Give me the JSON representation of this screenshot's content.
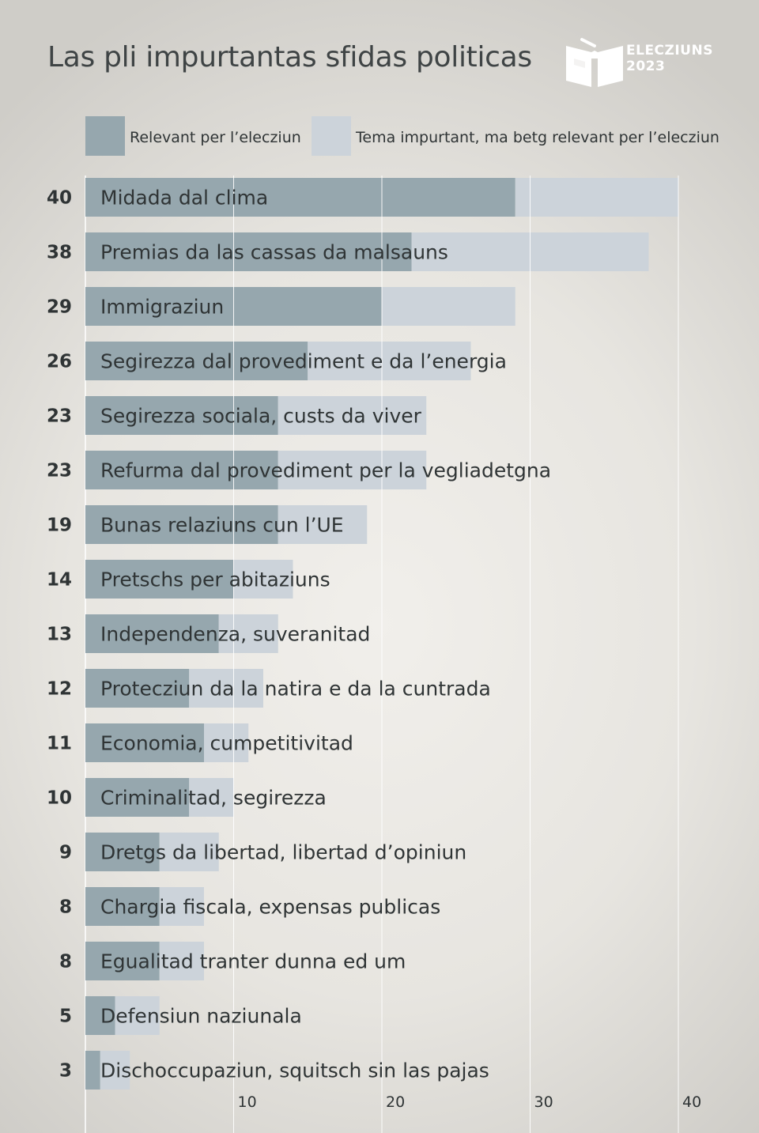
{
  "brand": {
    "line1": "ELECZIUNS",
    "line2": "2023"
  },
  "colors": {
    "relevant": "#96a7ae",
    "important": "#ccd3da"
  },
  "chart_data": {
    "type": "bar",
    "orientation": "horizontal",
    "stacked": true,
    "title": "Las pli impurtantas sfidas politicas",
    "legend": [
      "Relevant per l’elecziun",
      "Tema impurtant, ma betg relevant per l’elecziun"
    ],
    "legend_position": "top",
    "xlim": [
      0,
      40
    ],
    "xticks": [
      10,
      20,
      30,
      40
    ],
    "grid": true,
    "categories": [
      "Midada dal clima",
      "Premias da las cassas da malsauns",
      "Immigraziun",
      "Segirezza dal provediment e da l’energia",
      "Segirezza sociala, custs da viver",
      "Refurma dal provediment per la vegliadetgna",
      "Bunas relaziuns cun l’UE",
      "Pretschs per abitaziuns",
      "Independenza, suveranitad",
      "Protecziun da la natira e da la cuntrada",
      "Economia, cumpetitivitad",
      "Criminalitad, segirezza",
      "Dretgs da libertad, libertad d’opiniun",
      "Chargia fiscala, expensas publicas",
      "Egualitad tranter dunna ed um",
      "Defensiun naziunala",
      "Dischoccupaziun, squitsch sin las pajas"
    ],
    "totals": [
      40,
      38,
      29,
      26,
      23,
      23,
      19,
      14,
      13,
      12,
      11,
      10,
      9,
      8,
      8,
      5,
      3
    ],
    "series": [
      {
        "name": "Relevant per l’elecziun",
        "values": [
          29,
          22,
          20,
          15,
          13,
          13,
          13,
          10,
          9,
          7,
          8,
          7,
          5,
          5,
          5,
          2,
          1
        ]
      },
      {
        "name": "Tema impurtant, ma betg relevant per l’elecziun",
        "values": [
          11,
          16,
          9,
          11,
          10,
          10,
          6,
          4,
          4,
          5,
          3,
          3,
          4,
          3,
          3,
          3,
          2
        ]
      }
    ]
  }
}
